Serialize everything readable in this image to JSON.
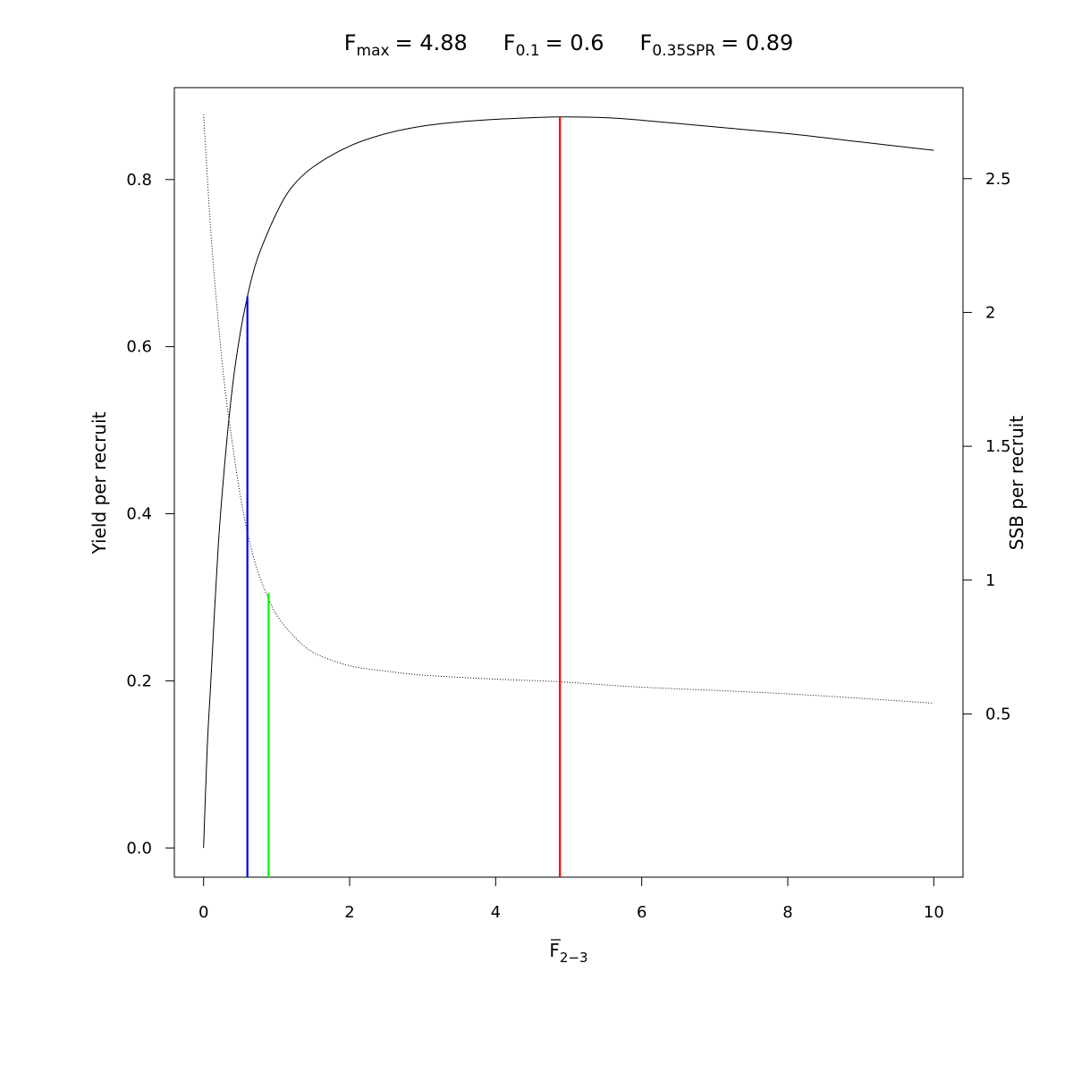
{
  "chart_data": {
    "type": "line",
    "title": {
      "fmax_label": "F",
      "fmax_sub": "max",
      "fmax_value": "= 4.88",
      "f01_label": "F",
      "f01_sub": "0.1",
      "f01_value": "= 0.6",
      "fspr_label": "F",
      "fspr_sub": "0.35SPR",
      "fspr_value": "= 0.89"
    },
    "xlabel_main": "F",
    "xlabel_sub": "2−3",
    "ylabel_left": "Yield per recruit",
    "ylabel_right": "SSB per recruit",
    "xlim": [
      -0.4,
      10.4
    ],
    "ylim_left": [
      -0.035,
      0.91
    ],
    "ylim_right": [
      -0.11,
      2.84
    ],
    "x_ticks": [
      {
        "value": 0,
        "label": "0"
      },
      {
        "value": 2,
        "label": "2"
      },
      {
        "value": 4,
        "label": "4"
      },
      {
        "value": 6,
        "label": "6"
      },
      {
        "value": 8,
        "label": "8"
      },
      {
        "value": 10,
        "label": "10"
      }
    ],
    "y_left_ticks": [
      {
        "value": 0.0,
        "label": "0.0"
      },
      {
        "value": 0.2,
        "label": "0.2"
      },
      {
        "value": 0.4,
        "label": "0.4"
      },
      {
        "value": 0.6,
        "label": "0.6"
      },
      {
        "value": 0.8,
        "label": "0.8"
      }
    ],
    "y_right_ticks": [
      {
        "value": 0.5,
        "label": "0.5"
      },
      {
        "value": 1,
        "label": "1"
      },
      {
        "value": 1.5,
        "label": "1.5"
      },
      {
        "value": 2,
        "label": "2"
      },
      {
        "value": 2.5,
        "label": "2.5"
      }
    ],
    "series": [
      {
        "axis": "left",
        "style": "solid",
        "color": "#000000",
        "points": [
          [
            0,
            0.0
          ],
          [
            0.05,
            0.12
          ],
          [
            0.1,
            0.2
          ],
          [
            0.2,
            0.36
          ],
          [
            0.3,
            0.47
          ],
          [
            0.4,
            0.555
          ],
          [
            0.5,
            0.615
          ],
          [
            0.6,
            0.66
          ],
          [
            0.7,
            0.695
          ],
          [
            0.8,
            0.72
          ],
          [
            1.0,
            0.76
          ],
          [
            1.2,
            0.79
          ],
          [
            1.5,
            0.815
          ],
          [
            2.0,
            0.84
          ],
          [
            2.5,
            0.855
          ],
          [
            3.0,
            0.864
          ],
          [
            3.5,
            0.869
          ],
          [
            4.0,
            0.872
          ],
          [
            4.5,
            0.874
          ],
          [
            4.88,
            0.875
          ],
          [
            5.5,
            0.874
          ],
          [
            6.0,
            0.871
          ],
          [
            7.0,
            0.863
          ],
          [
            8.0,
            0.855
          ],
          [
            9.0,
            0.845
          ],
          [
            10.0,
            0.835
          ]
        ]
      },
      {
        "axis": "right",
        "style": "dotted",
        "color": "#000000",
        "points": [
          [
            0,
            2.74
          ],
          [
            0.1,
            2.3
          ],
          [
            0.2,
            1.97
          ],
          [
            0.3,
            1.7
          ],
          [
            0.4,
            1.5
          ],
          [
            0.5,
            1.32
          ],
          [
            0.6,
            1.18
          ],
          [
            0.7,
            1.07
          ],
          [
            0.8,
            0.99
          ],
          [
            0.89,
            0.93
          ],
          [
            1.0,
            0.87
          ],
          [
            1.2,
            0.8
          ],
          [
            1.5,
            0.73
          ],
          [
            2.0,
            0.68
          ],
          [
            2.5,
            0.66
          ],
          [
            3.0,
            0.645
          ],
          [
            4.0,
            0.63
          ],
          [
            4.88,
            0.62
          ],
          [
            6.0,
            0.6
          ],
          [
            8.0,
            0.575
          ],
          [
            10.0,
            0.54
          ]
        ]
      }
    ],
    "reference_lines": [
      {
        "name": "Fmax",
        "x": 4.88,
        "y_left": 0.875,
        "color": "#ff0000"
      },
      {
        "name": "F0.1",
        "x": 0.6,
        "y_left": 0.66,
        "color": "#0000ff"
      },
      {
        "name": "F0.35SPR",
        "x": 0.89,
        "y_left": 0.305,
        "color": "#00ff00"
      }
    ],
    "grid": false,
    "legend": "none"
  }
}
